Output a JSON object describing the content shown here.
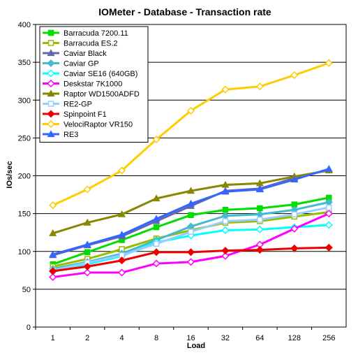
{
  "chart_data": {
    "type": "line",
    "title": "IOMeter - Database - Transaction rate",
    "xlabel": "Load",
    "ylabel": "IOs/sec",
    "categories": [
      "1",
      "2",
      "4",
      "8",
      "16",
      "32",
      "64",
      "128",
      "256"
    ],
    "ylim": [
      0,
      400
    ],
    "yticks": [
      0,
      50,
      100,
      150,
      200,
      250,
      300,
      350,
      400
    ],
    "grid": "horizontal",
    "legend_position": "top-left",
    "series": [
      {
        "name": "Barracuda 7200.11",
        "color": "#00dd00",
        "marker": "square",
        "values": [
          83,
          99,
          115,
          132,
          148,
          155,
          157,
          162,
          171
        ]
      },
      {
        "name": "Barracuda ES.2",
        "color": "#99bb00",
        "marker": "square-open",
        "values": [
          80,
          90,
          103,
          117,
          128,
          138,
          140,
          146,
          152
        ]
      },
      {
        "name": "Caviar Black",
        "color": "#6666aa",
        "marker": "triangle",
        "values": [
          95,
          108,
          120,
          140,
          160,
          180,
          183,
          197,
          208
        ]
      },
      {
        "name": "Caviar GP",
        "color": "#44bbcc",
        "marker": "diamond",
        "values": [
          77,
          86,
          97,
          115,
          133,
          147,
          149,
          155,
          165
        ]
      },
      {
        "name": "Caviar SE16 (640GB)",
        "color": "#00ffff",
        "marker": "diamond-open",
        "values": [
          73,
          83,
          94,
          112,
          121,
          128,
          129,
          132,
          135
        ]
      },
      {
        "name": "Deskstar 7K1000",
        "color": "#ff00ff",
        "marker": "diamond-open",
        "values": [
          66,
          72,
          72,
          84,
          86,
          94,
          109,
          130,
          150
        ]
      },
      {
        "name": "Raptor WD1500ADFD",
        "color": "#888800",
        "marker": "triangle",
        "values": [
          124,
          138,
          149,
          170,
          180,
          188,
          190,
          199,
          207
        ]
      },
      {
        "name": "RE2-GP",
        "color": "#99ccff",
        "marker": "square-open",
        "values": [
          75,
          85,
          95,
          110,
          126,
          140,
          142,
          149,
          158
        ]
      },
      {
        "name": "Spinpoint F1",
        "color": "#ee0000",
        "marker": "diamond",
        "values": [
          74,
          80,
          88,
          99,
          99,
          101,
          102,
          104,
          105
        ]
      },
      {
        "name": "VelociRaptor VR150",
        "color": "#ffcc00",
        "marker": "diamond-open",
        "values": [
          161,
          182,
          207,
          248,
          286,
          314,
          318,
          333,
          349
        ]
      },
      {
        "name": "RE3",
        "color": "#3366ff",
        "marker": "triangle",
        "values": [
          96,
          109,
          122,
          143,
          163,
          179,
          182,
          195,
          209
        ]
      }
    ]
  }
}
